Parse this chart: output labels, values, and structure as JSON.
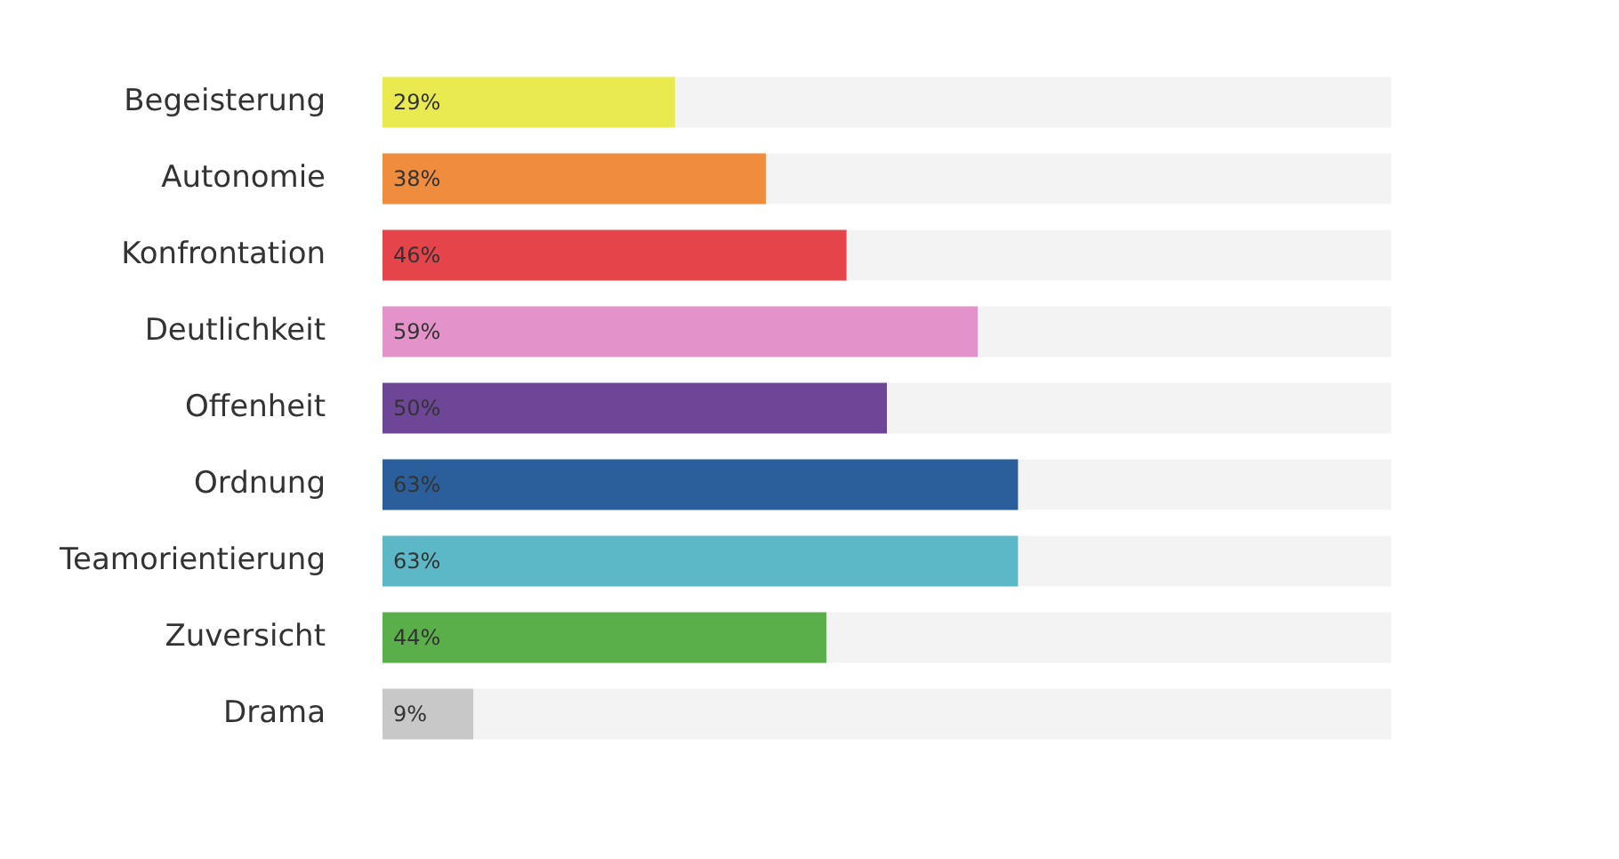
{
  "chart_data": {
    "type": "bar",
    "orientation": "horizontal",
    "stacked": true,
    "categories": [
      "Begeisterung",
      "Autonomie",
      "Konfrontation",
      "Deutlichkeit",
      "Offenheit",
      "Ordnung",
      "Teamorientierung",
      "Zuversicht",
      "Drama"
    ],
    "series": [
      {
        "values": [
          29,
          38,
          46,
          59,
          50,
          63,
          63,
          44,
          9
        ],
        "colors": [
          "#e8ea4f",
          "#ef8c3e",
          "#e5454a",
          "#e393c9",
          "#6e4697",
          "#2a5f9c",
          "#5cb8c6",
          "#5aaf4a",
          "#c8c8c8"
        ],
        "value_labels": [
          "29%",
          "38%",
          "46%",
          "59%",
          "50%",
          "63%",
          "63%",
          "44%",
          "9%"
        ]
      },
      {
        "values": [
          71,
          62,
          54,
          41,
          50,
          37,
          37,
          56,
          91
        ],
        "color": "#f3f3f3"
      }
    ],
    "xlim": [
      0,
      100
    ],
    "legend": false
  }
}
